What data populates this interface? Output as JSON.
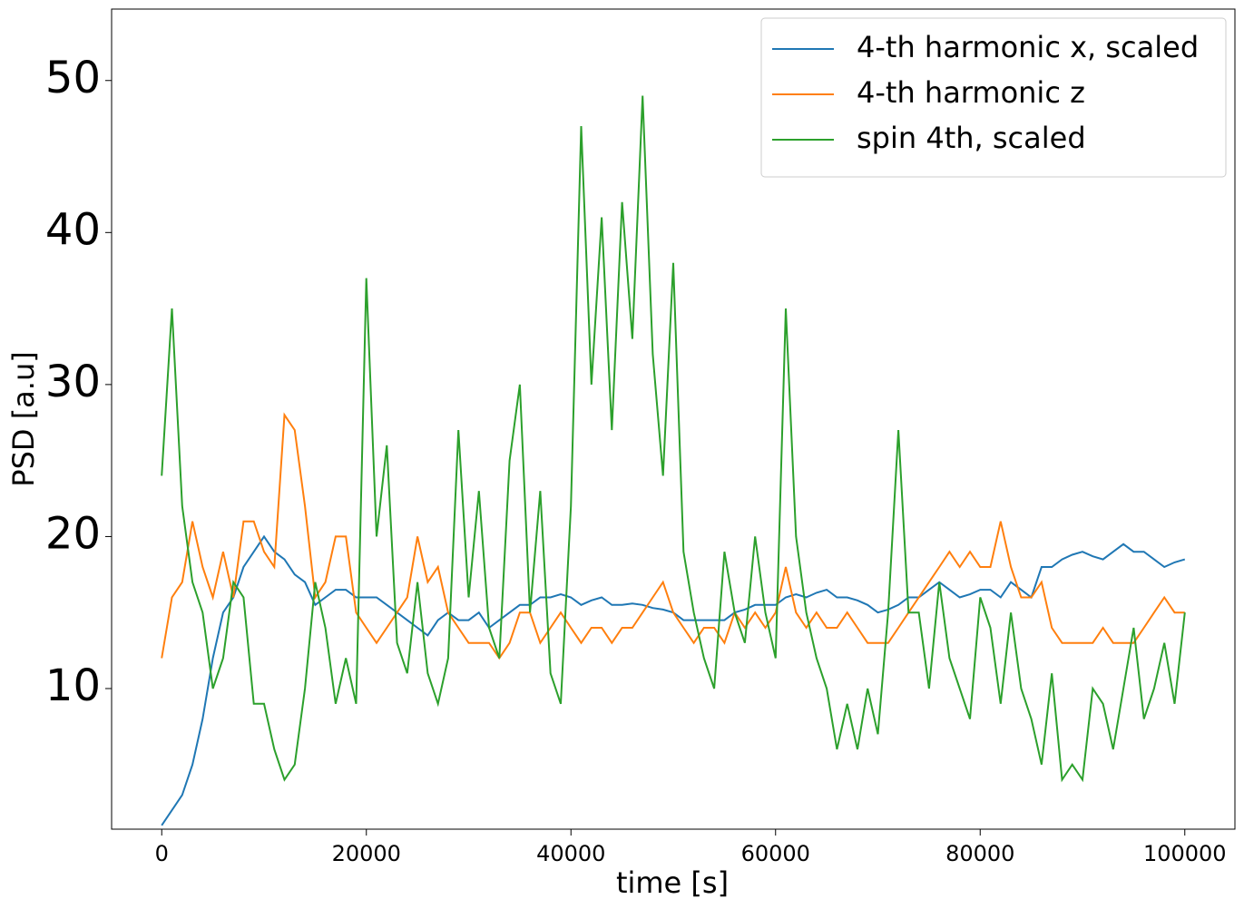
{
  "chart_data": {
    "type": "line",
    "x_label": "time [s]",
    "y_label": "PSD [a.u]",
    "xlim": [
      -4900,
      104900
    ],
    "ylim": [
      0.75,
      54.7
    ],
    "xticks": [
      0,
      20000,
      40000,
      60000,
      80000,
      100000
    ],
    "yticks": [
      10,
      20,
      30,
      40,
      50
    ],
    "legend": "upper right",
    "x": [
      0,
      1000,
      2000,
      3000,
      4000,
      5000,
      6000,
      7000,
      8000,
      9000,
      10000,
      11000,
      12000,
      13000,
      14000,
      15000,
      16000,
      17000,
      18000,
      19000,
      20000,
      21000,
      22000,
      23000,
      24000,
      25000,
      26000,
      27000,
      28000,
      29000,
      30000,
      31000,
      32000,
      33000,
      34000,
      35000,
      36000,
      37000,
      38000,
      39000,
      40000,
      41000,
      42000,
      43000,
      44000,
      45000,
      46000,
      47000,
      48000,
      49000,
      50000,
      51000,
      52000,
      53000,
      54000,
      55000,
      56000,
      57000,
      58000,
      59000,
      60000,
      61000,
      62000,
      63000,
      64000,
      65000,
      66000,
      67000,
      68000,
      69000,
      70000,
      71000,
      72000,
      73000,
      74000,
      75000,
      76000,
      77000,
      78000,
      79000,
      80000,
      81000,
      82000,
      83000,
      84000,
      85000,
      86000,
      87000,
      88000,
      89000,
      90000,
      91000,
      92000,
      93000,
      94000,
      95000,
      96000,
      97000,
      98000,
      99000,
      100000
    ],
    "series": [
      {
        "name": "4-th harmonic x, scaled",
        "color": "#1f77b4",
        "values": [
          1,
          2,
          3,
          5,
          8,
          12,
          15,
          16,
          18,
          19,
          20,
          19,
          18.5,
          17.5,
          17,
          15.5,
          16,
          16.5,
          16.5,
          16,
          16,
          16,
          15.5,
          15,
          14.5,
          14,
          13.5,
          14.5,
          15,
          14.5,
          14.5,
          15,
          14,
          14.5,
          15,
          15.5,
          15.5,
          16,
          16,
          16.2,
          16,
          15.5,
          15.8,
          16,
          15.5,
          15.5,
          15.6,
          15.5,
          15.3,
          15.2,
          15,
          14.5,
          14.5,
          14.5,
          14.5,
          14.5,
          15,
          15.2,
          15.5,
          15.5,
          15.5,
          16,
          16.2,
          16,
          16.3,
          16.5,
          16,
          16,
          15.8,
          15.5,
          15,
          15.2,
          15.5,
          16,
          16,
          16.5,
          17,
          16.5,
          16,
          16.2,
          16.5,
          16.5,
          16,
          17,
          16.5,
          16,
          18,
          18,
          18.5,
          18.8,
          19,
          18.7,
          18.5,
          19,
          19.5,
          19,
          19,
          18.5,
          18,
          18.3,
          18.5
        ]
      },
      {
        "name": "4-th harmonic z",
        "color": "#ff7f0e",
        "values": [
          12,
          16,
          17,
          21,
          18,
          16,
          19,
          16,
          21,
          21,
          19,
          18,
          28,
          27,
          22,
          16,
          17,
          20,
          20,
          15,
          14,
          13,
          14,
          15,
          16,
          20,
          17,
          18,
          15,
          14,
          13,
          13,
          13,
          12,
          13,
          15,
          15,
          13,
          14,
          15,
          14,
          13,
          14,
          14,
          13,
          14,
          14,
          15,
          16,
          17,
          15,
          14,
          13,
          14,
          14,
          13,
          15,
          14,
          15,
          14,
          15,
          18,
          15,
          14,
          15,
          14,
          14,
          15,
          14,
          13,
          13,
          13,
          14,
          15,
          16,
          17,
          18,
          19,
          18,
          19,
          18,
          18,
          21,
          18,
          16,
          16,
          17,
          14,
          13,
          13,
          13,
          13,
          14,
          13,
          13,
          13,
          14,
          15,
          16,
          15,
          15
        ]
      },
      {
        "name": "spin 4th, scaled",
        "color": "#2ca02c",
        "values": [
          24,
          35,
          22,
          17,
          15,
          10,
          12,
          17,
          16,
          9,
          9,
          6,
          4,
          5,
          10,
          17,
          14,
          9,
          12,
          9,
          37,
          20,
          26,
          13,
          11,
          17,
          11,
          9,
          12,
          27,
          16,
          23,
          14,
          12,
          25,
          30,
          15,
          23,
          11,
          9,
          22,
          47,
          30,
          41,
          27,
          42,
          33,
          49,
          32,
          24,
          38,
          19,
          15,
          12,
          10,
          19,
          15,
          13,
          20,
          15,
          12,
          35,
          20,
          15,
          12,
          10,
          6,
          9,
          6,
          10,
          7,
          15,
          27,
          15,
          15,
          10,
          17,
          12,
          10,
          8,
          16,
          14,
          9,
          15,
          10,
          8,
          5,
          11,
          4,
          5,
          4,
          10,
          9,
          6,
          10,
          14,
          8,
          10,
          13,
          9,
          15
        ]
      }
    ]
  }
}
